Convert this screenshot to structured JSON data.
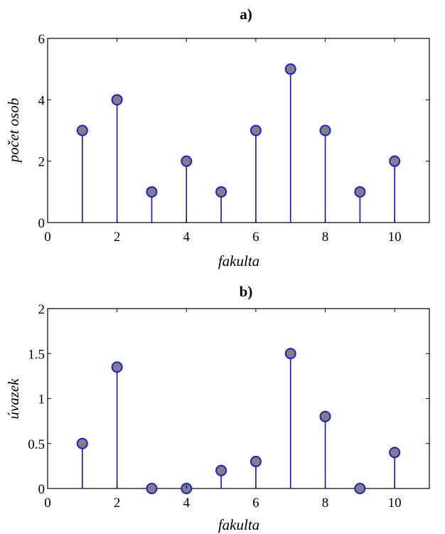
{
  "chart_data": [
    {
      "type": "stem",
      "title": "a)",
      "xlabel": "fakulta",
      "ylabel": "počet osob",
      "xlim": [
        0,
        11
      ],
      "ylim": [
        0,
        6
      ],
      "xticks": [
        0,
        2,
        4,
        6,
        8,
        10
      ],
      "xtick_labels": [
        "0",
        "2",
        "4",
        "6",
        "8",
        "10"
      ],
      "yticks": [
        0,
        2,
        4,
        6
      ],
      "ytick_labels": [
        "0",
        "2",
        "4",
        "6"
      ],
      "grid": false,
      "series": [
        {
          "x": [
            1,
            2,
            3,
            4,
            5,
            6,
            7,
            8,
            9,
            10
          ],
          "values": [
            3,
            4,
            1,
            2,
            1,
            3,
            5,
            3,
            1,
            2
          ]
        }
      ]
    },
    {
      "type": "stem",
      "title": "b)",
      "xlabel": "fakulta",
      "ylabel": "úvazek",
      "xlim": [
        0,
        11
      ],
      "ylim": [
        0,
        2
      ],
      "xticks": [
        0,
        2,
        4,
        6,
        8,
        10
      ],
      "xtick_labels": [
        "0",
        "2",
        "4",
        "6",
        "8",
        "10"
      ],
      "yticks": [
        0,
        0.5,
        1,
        1.5,
        2
      ],
      "ytick_labels": [
        "0",
        "0.5",
        "1",
        "1.5",
        "2"
      ],
      "grid": false,
      "series": [
        {
          "x": [
            1,
            2,
            3,
            4,
            5,
            6,
            7,
            8,
            9,
            10
          ],
          "values": [
            0.5,
            1.35,
            0,
            0,
            0.2,
            0.3,
            1.5,
            0.8,
            0,
            0.4
          ]
        }
      ]
    }
  ],
  "colors": {
    "stem": "#1010d0",
    "marker_fill": "#808080",
    "marker_edge": "#1a1ae6",
    "axes": "#000000"
  }
}
